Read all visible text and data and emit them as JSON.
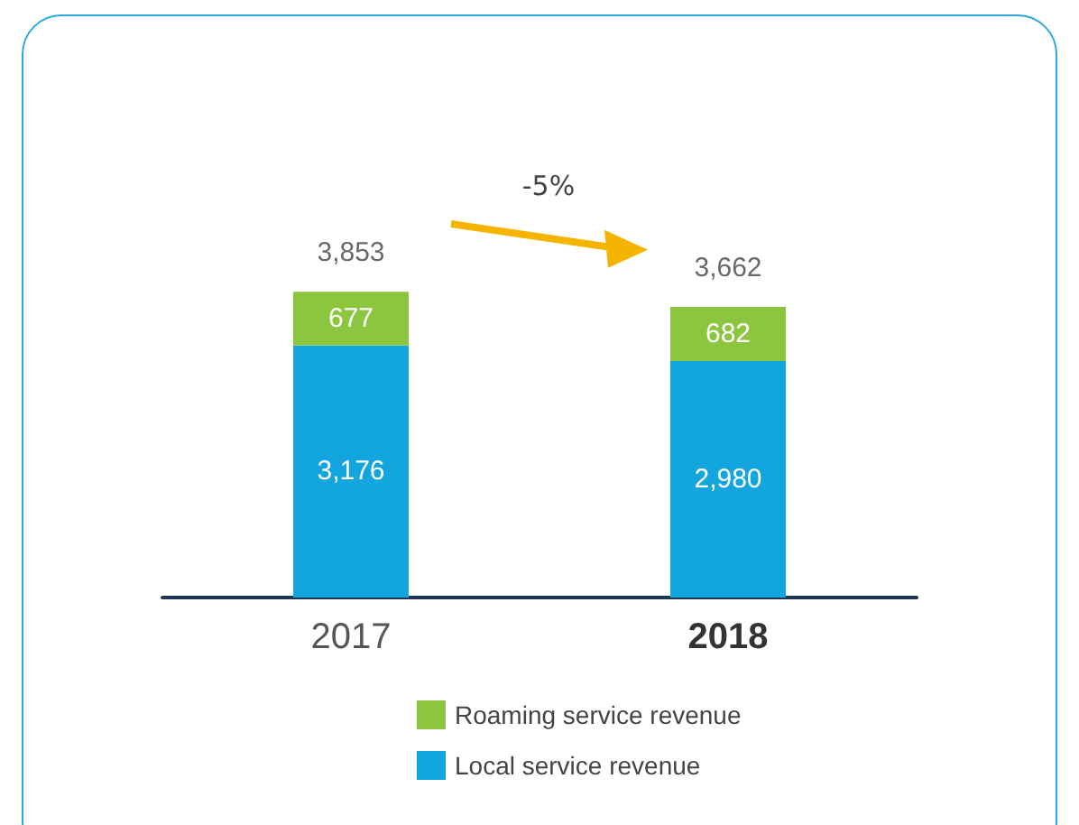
{
  "chart_data": {
    "type": "bar",
    "stacked": true,
    "categories": [
      "2017",
      "2018"
    ],
    "series": [
      {
        "name": "Local service revenue",
        "color": "#12a5de",
        "values": [
          3176,
          2980
        ],
        "value_labels": [
          "3,176",
          "2,980"
        ]
      },
      {
        "name": "Roaming service revenue",
        "color": "#8cc63f",
        "values": [
          677,
          682
        ],
        "value_labels": [
          "677",
          "682"
        ]
      }
    ],
    "totals": [
      "3,853",
      "3,662"
    ],
    "annotations": [
      "-5%"
    ],
    "legend": "bottom",
    "grid": false
  }
}
